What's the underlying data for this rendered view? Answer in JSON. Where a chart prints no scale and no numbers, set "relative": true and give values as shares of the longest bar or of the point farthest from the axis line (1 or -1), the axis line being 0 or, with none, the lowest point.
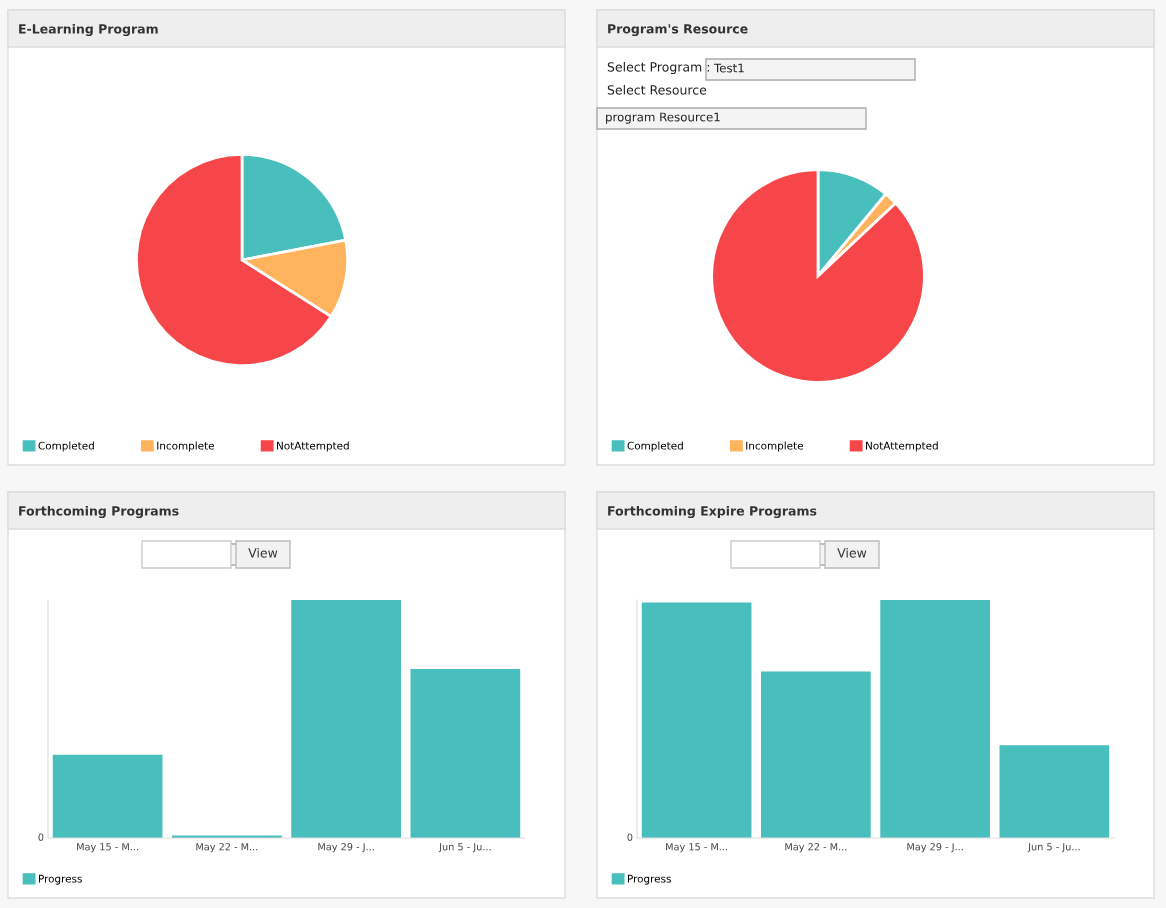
{
  "chart_data": [
    {
      "type": "pie",
      "title": "E-Learning Program",
      "categories": [
        "Completed",
        "Incomplete",
        "NotAttempted"
      ],
      "values": [
        22,
        12,
        66
      ],
      "colors": [
        "#48bfbd",
        "#ffb35c",
        "#f7464a"
      ],
      "legend": "bottom"
    },
    {
      "type": "pie",
      "title": "Program's Resource",
      "categories": [
        "Completed",
        "Incomplete",
        "NotAttempted"
      ],
      "values": [
        11,
        2,
        87
      ],
      "colors": [
        "#48bfbd",
        "#ffb35c",
        "#f7464a"
      ],
      "legend": "bottom",
      "annotations": [
        "Select Program :",
        "Test1",
        "Select Resource",
        "program Resource1"
      ]
    },
    {
      "type": "bar",
      "title": "Forthcoming Programs",
      "categories": [
        "May 15 - M...",
        "May 22 - M...",
        "May 29 - J...",
        "Jun 5 - Ju..."
      ],
      "relative": true,
      "legend": "bottom",
      "annotations": [
        "View",
        "0"
      ],
      "series": [
        {
          "name": "Progress",
          "color": "#48bfbd",
          "values": [
            0.35,
            0.01,
            1,
            0.71
          ]
        }
      ]
    },
    {
      "type": "bar",
      "title": "Forthcoming Expire Programs",
      "categories": [
        "May 15 - M...",
        "May 22 - M...",
        "May 29 - J...",
        "Jun 5 - Ju..."
      ],
      "relative": true,
      "legend": "bottom",
      "annotations": [
        "View",
        "0"
      ],
      "series": [
        {
          "name": "Progress",
          "color": "#48bfbd",
          "values": [
            0.99,
            0.7,
            1,
            0.39
          ]
        }
      ]
    }
  ]
}
